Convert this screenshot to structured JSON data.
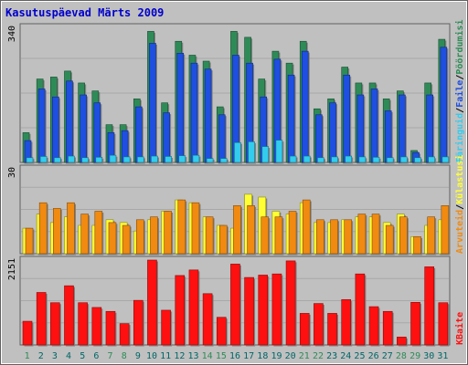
{
  "title": "Kasutuspäevad Märts 2009",
  "colors": {
    "background": "#C0C0C0",
    "frame": "#606060",
    "title": "#0000CC",
    "pages": "#2E8B57",
    "files": "#1E4FE0",
    "hits": "#33CCEE",
    "visits": "#F08A10",
    "sites": "#FFFF33",
    "kbytes": "#FF1010",
    "weekday": "#006666",
    "weekend": "#2E8B57"
  },
  "chart_data": [
    {
      "type": "bar",
      "title": "Kasutuspäevad Märts 2009",
      "panel": "top",
      "ymax_label": "340",
      "ylim": [
        0,
        340
      ],
      "categories": [
        "1",
        "2",
        "3",
        "4",
        "5",
        "6",
        "7",
        "8",
        "9",
        "10",
        "11",
        "12",
        "13",
        "14",
        "15",
        "16",
        "17",
        "18",
        "19",
        "20",
        "21",
        "22",
        "23",
        "24",
        "25",
        "26",
        "27",
        "28",
        "29",
        "30",
        "31"
      ],
      "weekend_days": [
        1,
        7,
        8,
        14,
        15,
        21,
        22,
        28,
        29
      ],
      "legend": [
        {
          "label": "Päringuid",
          "color": "#33CCEE"
        },
        {
          "label": "Faile",
          "color": "#1E4FE0"
        },
        {
          "label": "Pöördumisi",
          "color": "#2E8B57"
        }
      ],
      "series": [
        {
          "name": "Pöördumisi",
          "values": [
            75,
            210,
            215,
            230,
            200,
            180,
            95,
            95,
            160,
            330,
            150,
            305,
            270,
            255,
            140,
            330,
            315,
            210,
            280,
            250,
            305,
            135,
            160,
            240,
            200,
            200,
            160,
            180,
            30,
            200,
            310
          ]
        },
        {
          "name": "Faile",
          "values": [
            55,
            185,
            165,
            205,
            170,
            150,
            75,
            80,
            140,
            300,
            125,
            275,
            250,
            235,
            120,
            270,
            250,
            165,
            260,
            220,
            280,
            120,
            150,
            220,
            170,
            185,
            130,
            170,
            25,
            170,
            290
          ]
        },
        {
          "name": "Päringuid",
          "values": [
            12,
            15,
            12,
            16,
            12,
            13,
            18,
            14,
            14,
            16,
            15,
            17,
            18,
            10,
            10,
            50,
            52,
            40,
            56,
            16,
            16,
            12,
            14,
            16,
            14,
            13,
            12,
            14,
            12,
            14,
            14
          ]
        }
      ]
    },
    {
      "type": "bar",
      "panel": "middle",
      "ymax_label": "30",
      "ylim": [
        0,
        30
      ],
      "legend": [
        {
          "label": "Arvuteid",
          "color": "#F08A10"
        },
        {
          "label": "Külastusi",
          "color": "#FFFF33"
        }
      ],
      "series": [
        {
          "name": "Külastusi",
          "values": [
            9,
            14,
            11,
            13,
            10,
            10,
            12,
            11,
            8,
            12,
            15,
            19,
            18,
            13,
            10,
            9,
            21,
            20,
            15,
            14,
            18,
            11,
            11,
            12,
            13,
            13,
            11,
            14,
            6,
            10,
            12
          ]
        },
        {
          "name": "Arvuteid",
          "values": [
            9,
            18,
            16,
            18,
            14,
            15,
            11,
            10,
            12,
            13,
            15,
            19,
            18,
            13,
            10,
            17,
            17,
            13,
            13,
            15,
            19,
            12,
            12,
            12,
            14,
            14,
            10,
            13,
            6,
            13,
            17
          ]
        }
      ]
    },
    {
      "type": "bar",
      "panel": "bottom",
      "ymax_label": "2151",
      "ylim": [
        0,
        2151
      ],
      "legend": [
        {
          "label": "KBaite",
          "color": "#FF1010"
        }
      ],
      "series": [
        {
          "name": "KBaite",
          "values": [
            600,
            1330,
            1070,
            1500,
            1070,
            950,
            850,
            540,
            1130,
            2151,
            880,
            1760,
            1900,
            1300,
            700,
            2050,
            1710,
            1770,
            1800,
            2130,
            800,
            1050,
            800,
            1150,
            1800,
            970,
            850,
            200,
            1080,
            1980,
            1070
          ]
        }
      ]
    }
  ]
}
